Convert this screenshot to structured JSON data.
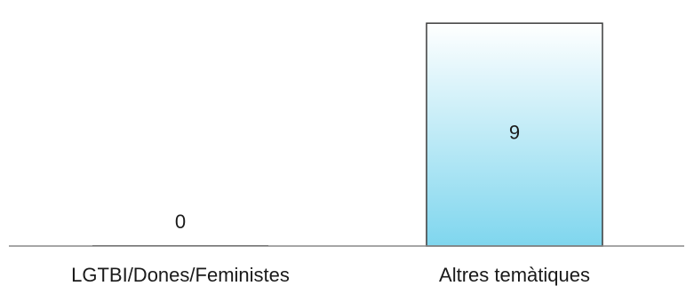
{
  "chart_data": {
    "type": "bar",
    "title": "",
    "xlabel": "",
    "ylabel": "",
    "categories": [
      "LGTBI/Dones/Feministes",
      "Altres temàtiques"
    ],
    "values": [
      0,
      9
    ],
    "data_labels": [
      "0",
      "9"
    ],
    "ylim": [
      0,
      9.4
    ],
    "grid": false,
    "legend": "none",
    "colors": {
      "bar_top": "#ffffff",
      "bar_bottom": "#7fd6ee",
      "bar_outline": "#3a3a3a",
      "axis": "#888888",
      "text": "#1a1a1a"
    }
  }
}
